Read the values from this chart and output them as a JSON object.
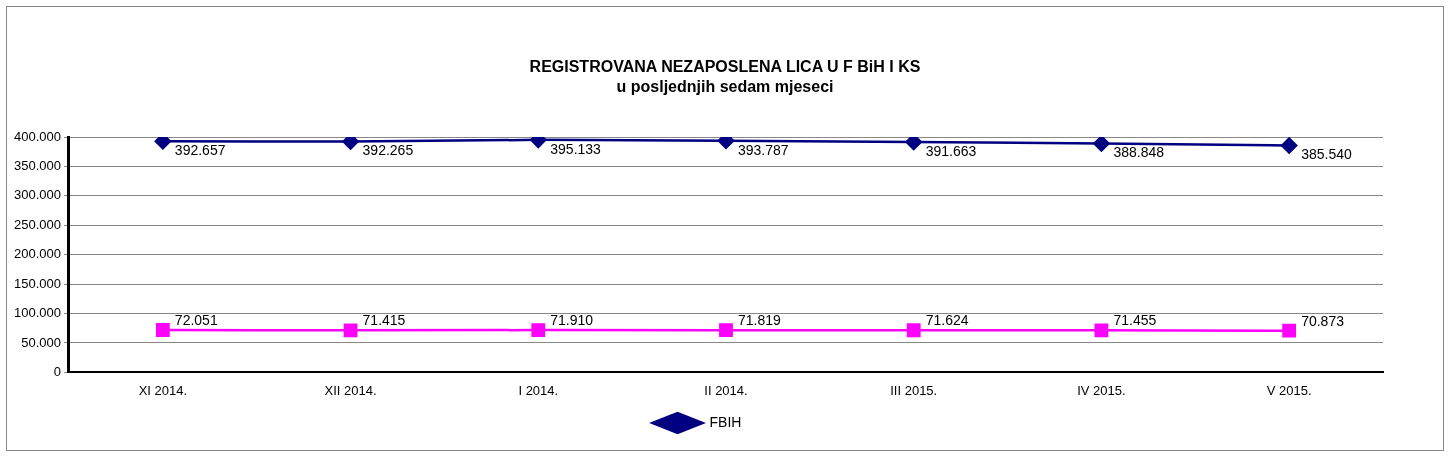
{
  "chart_data": {
    "type": "line",
    "title": "REGISTROVANA NEZAPOSLENA LICA U F BiH I KS",
    "subtitle": "u posljednjih sedam mjeseci",
    "categories": [
      "XI 2014.",
      "XII 2014.",
      "I 2014.",
      "II 2014.",
      "III 2015.",
      "IV 2015.",
      "V 2015."
    ],
    "series": [
      {
        "name": "FBIH",
        "color": "#000080",
        "marker": "diamond",
        "values": [
          392657,
          392265,
          395133,
          393787,
          391663,
          388848,
          385540
        ],
        "value_labels": [
          "392.657",
          "392.265",
          "395.133",
          "393.787",
          "391.663",
          "388.848",
          "385.540"
        ]
      },
      {
        "color": "#ff00ff",
        "marker": "square",
        "values": [
          72051,
          71415,
          71910,
          71819,
          71624,
          71455,
          70873
        ],
        "value_labels": [
          "72.051",
          "71.415",
          "71.910",
          "71.819",
          "71.624",
          "71.455",
          "70.873"
        ]
      }
    ],
    "ylim": [
      0,
      400000
    ],
    "yticks": [
      {
        "value": 0,
        "label": "0"
      },
      {
        "value": 50000,
        "label": "50.000"
      },
      {
        "value": 100000,
        "label": "100.000"
      },
      {
        "value": 150000,
        "label": "150.000"
      },
      {
        "value": 200000,
        "label": "200.000"
      },
      {
        "value": 250000,
        "label": "250.000"
      },
      {
        "value": 300000,
        "label": "300.000"
      },
      {
        "value": 350000,
        "label": "350.000"
      },
      {
        "value": 400000,
        "label": "400.000"
      }
    ],
    "grid": "y",
    "legend": "bottom",
    "line_style": "solid"
  }
}
